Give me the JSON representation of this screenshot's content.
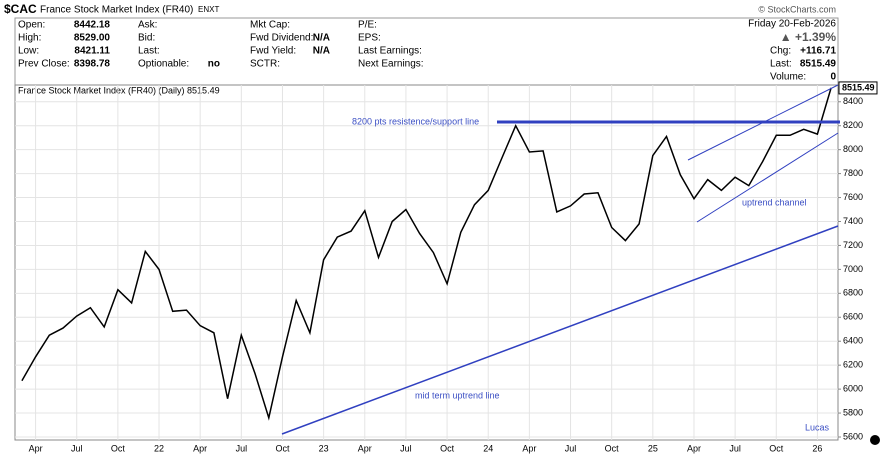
{
  "header": {
    "symbol": "$CAC",
    "name": "France Stock Market Index (FR40)",
    "exchange": "ENXT",
    "fields": [
      [
        "Open:",
        "8442.18"
      ],
      [
        "High:",
        "8529.00"
      ],
      [
        "Low:",
        "8421.11"
      ],
      [
        "Prev Close:",
        "8398.78"
      ],
      [
        "Ask:",
        ""
      ],
      [
        "Bid:",
        ""
      ],
      [
        "Last:",
        ""
      ],
      [
        "Optionable:",
        "no"
      ],
      [
        "Mkt Cap:",
        ""
      ],
      [
        "Fwd Dividend:",
        "N/A"
      ],
      [
        "Fwd Yield:",
        "N/A"
      ],
      [
        "SCTR:",
        ""
      ],
      [
        "P/E:",
        ""
      ],
      [
        "EPS:",
        ""
      ],
      [
        "Last Earnings:",
        ""
      ],
      [
        "Next Earnings:",
        ""
      ]
    ],
    "date": "Friday  20-Feb-2026",
    "change_pct": "▲ +1.39%",
    "chg_label": "Chg:",
    "chg": "+116.71",
    "last_label": "Last:",
    "last": "8515.49",
    "volume_label": "Volume:",
    "volume": "0",
    "credit": "© StockCharts.com"
  },
  "chart_data": {
    "type": "line",
    "legend": "France Stock Market Index (FR40) (Daily) 8515.49",
    "price_tag": "8515.49",
    "categories": [
      null,
      "Apr",
      null,
      null,
      "Jul",
      null,
      null,
      "Oct",
      null,
      null,
      "22",
      null,
      null,
      "Apr",
      null,
      null,
      "Jul",
      null,
      null,
      "Oct",
      null,
      null,
      "23",
      null,
      null,
      "Apr",
      null,
      null,
      "Jul",
      null,
      null,
      "Oct",
      null,
      null,
      "24",
      null,
      null,
      "Apr",
      null,
      null,
      "Jul",
      null,
      null,
      "Oct",
      null,
      null,
      "25",
      null,
      null,
      "Apr",
      null,
      null,
      "Jul",
      null,
      null,
      "Oct",
      null,
      null,
      "26",
      null
    ],
    "series": [
      {
        "name": "$CAC",
        "color": "#000000",
        "values": [
          6070,
          6270,
          6450,
          6510,
          6610,
          6680,
          6520,
          6830,
          6720,
          7150,
          7000,
          6650,
          6660,
          6530,
          6470,
          5920,
          6450,
          6130,
          5760,
          6270,
          6740,
          6470,
          7080,
          7270,
          7320,
          7490,
          7100,
          7400,
          7500,
          7300,
          7140,
          6880,
          7310,
          7540,
          7660,
          7930,
          8200,
          7980,
          7990,
          7480,
          7530,
          7630,
          7640,
          7350,
          7240,
          7380,
          7950,
          8110,
          7790,
          7590,
          7750,
          7660,
          7770,
          7700,
          7900,
          8120,
          8120,
          8170,
          8130,
          8515.49
        ]
      }
    ],
    "ylim": [
      5575,
      8540
    ],
    "yticks": [
      5600,
      5800,
      6000,
      6200,
      6400,
      6600,
      6800,
      7000,
      7200,
      7400,
      7600,
      7800,
      8000,
      8200,
      8400
    ],
    "grid": true,
    "annotations": [
      "8200 pts resistence/support line",
      "uptrend channel",
      "mid term uptrend line",
      "Lucas"
    ]
  }
}
